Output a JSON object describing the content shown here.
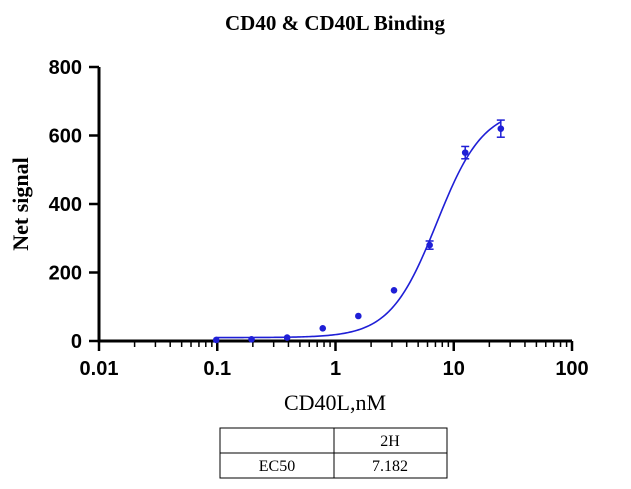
{
  "chart_data": {
    "type": "scatter",
    "title": "CD40 & CD40L Binding",
    "xlabel": "CD40L,nM",
    "ylabel": "Net signal",
    "xscale": "log",
    "xlim": [
      0.01,
      100
    ],
    "ylim": [
      0,
      800
    ],
    "xticks": [
      0.01,
      0.1,
      1,
      10,
      100
    ],
    "xtick_labels": [
      "0.01",
      "0.1",
      "1",
      "10",
      "100"
    ],
    "yticks": [
      0,
      200,
      400,
      600,
      800
    ],
    "ytick_labels": [
      "0",
      "200",
      "400",
      "600",
      "800"
    ],
    "grid": false,
    "color": "#1f1fd6",
    "series": [
      {
        "points": [
          {
            "x": 0.098,
            "y": 3,
            "err": 0
          },
          {
            "x": 0.195,
            "y": 5,
            "err": 0
          },
          {
            "x": 0.39,
            "y": 10,
            "err": 0
          },
          {
            "x": 0.78,
            "y": 37,
            "err": 0
          },
          {
            "x": 1.56,
            "y": 73,
            "err": 0
          },
          {
            "x": 3.125,
            "y": 148,
            "err": 0
          },
          {
            "x": 6.25,
            "y": 280,
            "err": 12
          },
          {
            "x": 12.5,
            "y": 550,
            "err": 18
          },
          {
            "x": 25,
            "y": 620,
            "err": 25
          }
        ],
        "fit": {
          "bottom": 10,
          "top": 680,
          "ec50": 7.182,
          "hill": 2.2,
          "x_from": 0.098,
          "x_to": 25
        }
      }
    ],
    "table": {
      "header": [
        "",
        "2H"
      ],
      "rows": [
        [
          "EC50",
          "7.182"
        ]
      ]
    }
  }
}
